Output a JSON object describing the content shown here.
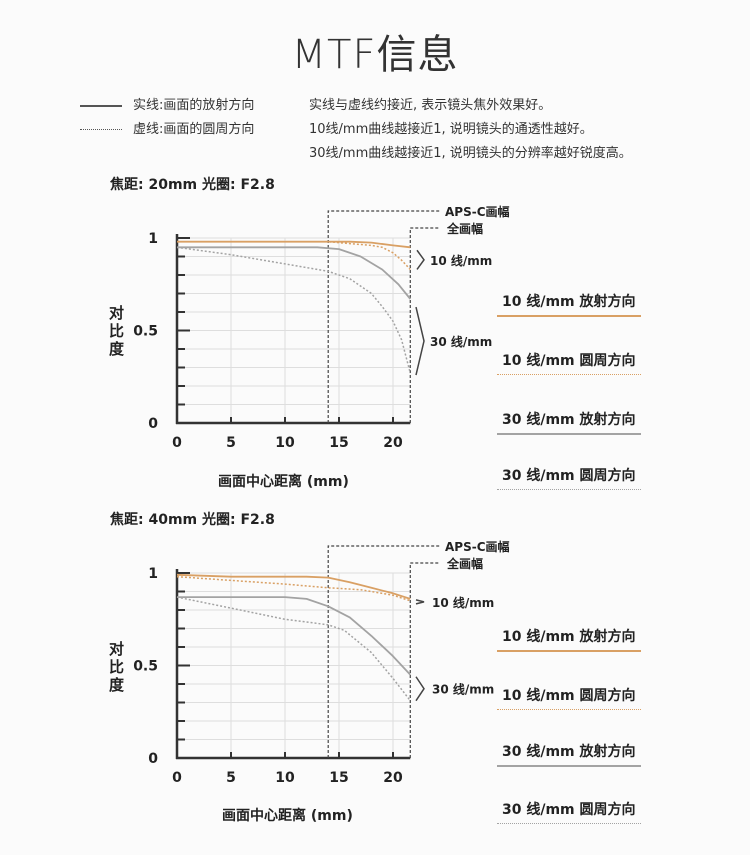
{
  "title": "MTF信息",
  "legend": {
    "solid": {
      "label": "实线:画面的放射方向",
      "style": "solid"
    },
    "dotted": {
      "label": "虚线:画面的圆周方向",
      "style": "dotted"
    }
  },
  "notes": [
    "实线与虚线约接近, 表示镜头焦外效果好。",
    "10线/mm曲线越接近1, 说明镜头的通透性越好。",
    "30线/mm曲线越接近1, 说明镜头的分辨率越好锐度高。"
  ],
  "colors": {
    "orange": "#d9a064",
    "gray": "#a3a3a3",
    "axis": "#333333"
  },
  "chart_data": [
    {
      "type": "line",
      "title": "焦距: 20mm  光圈: F2.8",
      "xlabel": "画面中心距离 (mm)",
      "ylabel": "对比度",
      "xlim": [
        0,
        21.6
      ],
      "ylim": [
        0,
        1
      ],
      "xticks": [
        "0",
        "5",
        "10",
        "15",
        "20"
      ],
      "yticks": [
        "0",
        "0.5",
        "1"
      ],
      "grid": true,
      "annotations": {
        "apsc": {
          "label": "APS-C画幅",
          "x": 14
        },
        "full": {
          "label": "全画幅",
          "x": 21.6
        },
        "lp10": "10 线/mm",
        "lp30": "30 线/mm"
      },
      "series": [
        {
          "name": "10 线/mm 放射方向",
          "color": "#d9a064",
          "style": "solid",
          "x": [
            0,
            5,
            10,
            14,
            16,
            18,
            20,
            21.6
          ],
          "y": [
            0.98,
            0.98,
            0.98,
            0.98,
            0.98,
            0.975,
            0.96,
            0.95
          ]
        },
        {
          "name": "10 线/mm 圆周方向",
          "color": "#d9a064",
          "style": "dotted",
          "x": [
            0,
            5,
            10,
            14,
            16,
            18,
            19,
            20,
            20.8,
            21.6
          ],
          "y": [
            0.98,
            0.98,
            0.98,
            0.98,
            0.97,
            0.96,
            0.95,
            0.92,
            0.88,
            0.83
          ]
        },
        {
          "name": "30 线/mm 放射方向",
          "color": "#a3a3a3",
          "style": "solid",
          "x": [
            0,
            5,
            10,
            13,
            15,
            17,
            19,
            20.5,
            21.6
          ],
          "y": [
            0.95,
            0.95,
            0.95,
            0.95,
            0.94,
            0.9,
            0.83,
            0.75,
            0.67
          ]
        },
        {
          "name": "30 线/mm 圆周方向",
          "color": "#a3a3a3",
          "style": "dotted",
          "x": [
            0,
            5,
            10,
            14,
            16,
            18,
            19,
            20,
            20.8,
            21.6
          ],
          "y": [
            0.95,
            0.91,
            0.86,
            0.82,
            0.78,
            0.7,
            0.63,
            0.55,
            0.45,
            0.27
          ]
        }
      ]
    },
    {
      "type": "line",
      "title": "焦距: 40mm  光圈: F2.8",
      "xlabel": "画面中心距离 (mm)",
      "ylabel": "对比度",
      "xlim": [
        0,
        21.6
      ],
      "ylim": [
        0,
        1
      ],
      "xticks": [
        "0",
        "5",
        "10",
        "15",
        "20"
      ],
      "yticks": [
        "0",
        "0.5",
        "1"
      ],
      "grid": true,
      "annotations": {
        "apsc": {
          "label": "APS-C画幅",
          "x": 14
        },
        "full": {
          "label": "全画幅",
          "x": 21.6
        },
        "lp10": "10 线/mm",
        "lp30": "30 线/mm"
      },
      "series": [
        {
          "name": "10 线/mm 放射方向",
          "color": "#d9a064",
          "style": "solid",
          "x": [
            0,
            5,
            10,
            12,
            14,
            16,
            18,
            20,
            21.6
          ],
          "y": [
            0.99,
            0.98,
            0.98,
            0.98,
            0.975,
            0.95,
            0.92,
            0.89,
            0.86
          ]
        },
        {
          "name": "10 线/mm 圆周方向",
          "color": "#d9a064",
          "style": "dotted",
          "x": [
            0,
            5,
            10,
            14,
            17,
            20,
            21.6
          ],
          "y": [
            0.98,
            0.96,
            0.94,
            0.92,
            0.91,
            0.88,
            0.85
          ]
        },
        {
          "name": "30 线/mm 放射方向",
          "color": "#a3a3a3",
          "style": "solid",
          "x": [
            0,
            5,
            10,
            12,
            14,
            16,
            18,
            20,
            21.6
          ],
          "y": [
            0.87,
            0.87,
            0.87,
            0.86,
            0.82,
            0.76,
            0.66,
            0.55,
            0.45
          ]
        },
        {
          "name": "30 线/mm 圆周方向",
          "color": "#a3a3a3",
          "style": "dotted",
          "x": [
            0,
            5,
            10,
            14,
            15.5,
            18,
            20,
            21.6
          ],
          "y": [
            0.87,
            0.81,
            0.75,
            0.72,
            0.69,
            0.57,
            0.43,
            0.31
          ]
        }
      ]
    }
  ]
}
